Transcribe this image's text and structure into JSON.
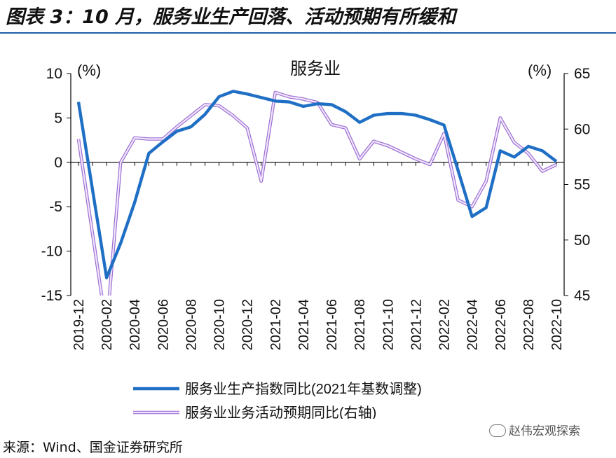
{
  "figure": {
    "title": "图表 3：10 月，服务业生产回落、活动预期有所缓和",
    "source": "来源：Wind、国金证券研究所",
    "watermark": "赵伟宏观探索"
  },
  "chart_data": {
    "type": "line",
    "title": "服务业",
    "xlabel": "",
    "ylabel": "(%)",
    "y2label": "(%)",
    "x": [
      "2019-12",
      "2020-01",
      "2020-02",
      "2020-03",
      "2020-04",
      "2020-05",
      "2020-06",
      "2020-07",
      "2020-08",
      "2020-09",
      "2020-10",
      "2020-11",
      "2020-12",
      "2021-01",
      "2021-02",
      "2021-03",
      "2021-04",
      "2021-05",
      "2021-06",
      "2021-07",
      "2021-08",
      "2021-09",
      "2021-10",
      "2021-11",
      "2021-12",
      "2022-01",
      "2022-02",
      "2022-03",
      "2022-04",
      "2022-05",
      "2022-06",
      "2022-07",
      "2022-08",
      "2022-09",
      "2022-10"
    ],
    "xtick_labels": [
      "2019-12",
      "2020-02",
      "2020-04",
      "2020-06",
      "2020-08",
      "2020-10",
      "2020-12",
      "2021-02",
      "2021-04",
      "2021-06",
      "2021-08",
      "2021-10",
      "2021-12",
      "2022-02",
      "2022-04",
      "2022-06",
      "2022-08",
      "2022-10"
    ],
    "ylim": [
      -15,
      10
    ],
    "yticks": [
      10,
      5,
      0,
      -5,
      -10,
      -15
    ],
    "y2lim": [
      45,
      65
    ],
    "y2ticks": [
      65,
      60,
      55,
      50,
      45
    ],
    "grid": false,
    "legend_position": "bottom",
    "series": [
      {
        "name": "服务业生产指数同比(2021年基数调整)",
        "axis": "left",
        "color": "#1f6fc5",
        "values": [
          6.8,
          null,
          -13.0,
          -9.1,
          -4.5,
          1.0,
          2.3,
          3.5,
          4.0,
          5.4,
          7.4,
          8.0,
          7.7,
          7.3,
          6.9,
          6.8,
          6.3,
          6.6,
          6.5,
          5.7,
          4.5,
          5.3,
          5.5,
          5.5,
          5.3,
          4.8,
          4.2,
          -0.9,
          -6.1,
          -5.1,
          1.3,
          0.6,
          1.8,
          1.3,
          0.1
        ]
      },
      {
        "name": "服务业业务活动预期同比(右轴)",
        "axis": "right",
        "color": "#c9a0ee",
        "values": [
          59.1,
          null,
          42.0,
          57.0,
          59.2,
          59.1,
          59.1,
          60.2,
          61.2,
          62.2,
          62.1,
          61.2,
          60.1,
          55.3,
          63.3,
          62.9,
          62.7,
          62.4,
          60.4,
          60.1,
          57.3,
          58.9,
          58.5,
          57.9,
          57.3,
          56.8,
          59.6,
          53.6,
          53.0,
          55.3,
          61.0,
          58.8,
          57.8,
          56.2,
          56.8
        ]
      }
    ]
  }
}
